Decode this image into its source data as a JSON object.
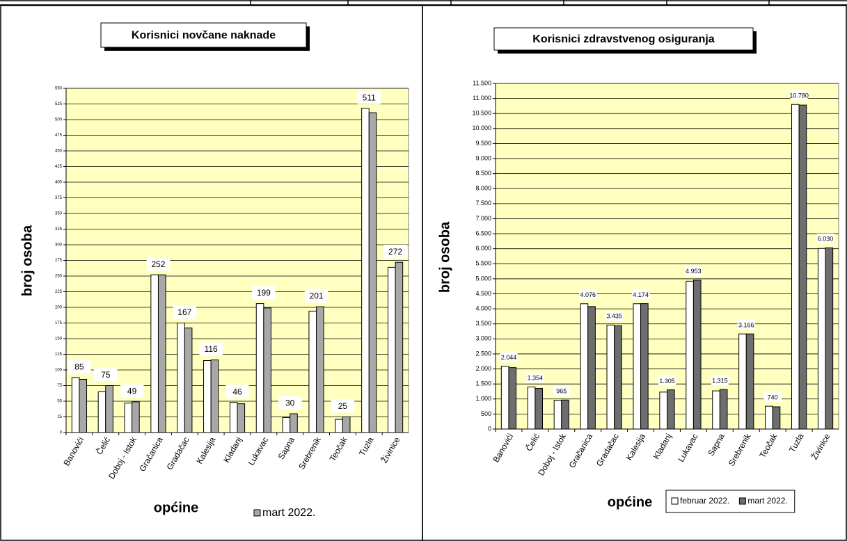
{
  "chart_data": [
    {
      "type": "bar",
      "title": "Korisnici novčane naknade",
      "x_label": "općine",
      "y_label": "broj osoba",
      "categories": [
        "Banovići",
        "Čelić",
        "Doboj - Istok",
        "Gračanica",
        "Gradačac",
        "Kalesija",
        "Kladanj",
        "Lukavac",
        "Sapna",
        "Srebrenik",
        "Teočak",
        "Tuzla",
        "Živinice"
      ],
      "series": [
        {
          "color": "#ffffff",
          "values": [
            88,
            65,
            47,
            252,
            175,
            115,
            48,
            206,
            24,
            194,
            21,
            518,
            264
          ]
        },
        {
          "name": "mart 2022.",
          "color": "#a8a8a8",
          "values": [
            85,
            75,
            49,
            252,
            167,
            116,
            46,
            199,
            30,
            201,
            25,
            511,
            272
          ]
        }
      ],
      "ylim": [
        0,
        550
      ],
      "yticks": [
        0,
        25,
        50,
        75,
        100,
        125,
        150,
        175,
        200,
        225,
        250,
        275,
        300,
        325,
        350,
        375,
        400,
        425,
        450,
        475,
        500,
        525,
        550
      ],
      "grid": true,
      "plot_color": "#ffffc0"
    },
    {
      "type": "bar",
      "title": "Korisnici zdravstvenog osiguranja",
      "x_label": "općine",
      "y_label": "broj osoba",
      "categories": [
        "Banovići",
        "Čelić",
        "Doboj - Istok",
        "Gračanica",
        "Gradačac",
        "Kalesija",
        "Kladanj",
        "Lukavac",
        "Sapna",
        "Srebrenik",
        "Teočak",
        "Tuzla",
        "Živinice"
      ],
      "series": [
        {
          "name": "februar 2022.",
          "color": "#ffffff",
          "values": [
            2090,
            1400,
            960,
            4170,
            3460,
            4170,
            1230,
            4920,
            1270,
            3166,
            760,
            10800,
            6010
          ]
        },
        {
          "name": "mart 2022.",
          "color": "#6e6e6e",
          "values": [
            2044,
            1354,
            965,
            4076,
            3435,
            4174,
            1305,
            4953,
            1315,
            3166,
            740,
            10780,
            6030
          ],
          "value_labels": [
            "2.044",
            "1.354",
            "965",
            "4.076",
            "3.435",
            "4.174",
            "1.305",
            "4.953",
            "1.315",
            "3.166",
            "740",
            "10.780",
            "6.030"
          ]
        }
      ],
      "ylim": [
        0,
        11500
      ],
      "yticks": [
        0,
        500,
        {
          "value": 1000,
          "label": "1.000"
        },
        {
          "value": 1500,
          "label": "1.500"
        },
        {
          "value": 2000,
          "label": "2.000"
        },
        {
          "value": 2500,
          "label": "2.500"
        },
        {
          "value": 3000,
          "label": "3.000"
        },
        {
          "value": 3500,
          "label": "3.500"
        },
        {
          "value": 4000,
          "label": "4.000"
        },
        {
          "value": 4500,
          "label": "4.500"
        },
        {
          "value": 5000,
          "label": "5.000"
        },
        {
          "value": 5500,
          "label": "5.500"
        },
        {
          "value": 6000,
          "label": "6.000"
        },
        {
          "value": 6500,
          "label": "6.500"
        },
        {
          "value": 7000,
          "label": "7.000"
        },
        {
          "value": 7500,
          "label": "7.500"
        },
        {
          "value": 8000,
          "label": "8.000"
        },
        {
          "value": 8500,
          "label": "8.500"
        },
        {
          "value": 9000,
          "label": "9.000"
        },
        {
          "value": 9500,
          "label": "9.500"
        },
        {
          "value": 10000,
          "label": "10.000"
        },
        {
          "value": 10500,
          "label": "10.500"
        },
        {
          "value": 11000,
          "label": "11.000"
        },
        {
          "value": 11500,
          "label": "11.500"
        }
      ],
      "grid": true,
      "plot_color": "#ffffc0"
    }
  ]
}
